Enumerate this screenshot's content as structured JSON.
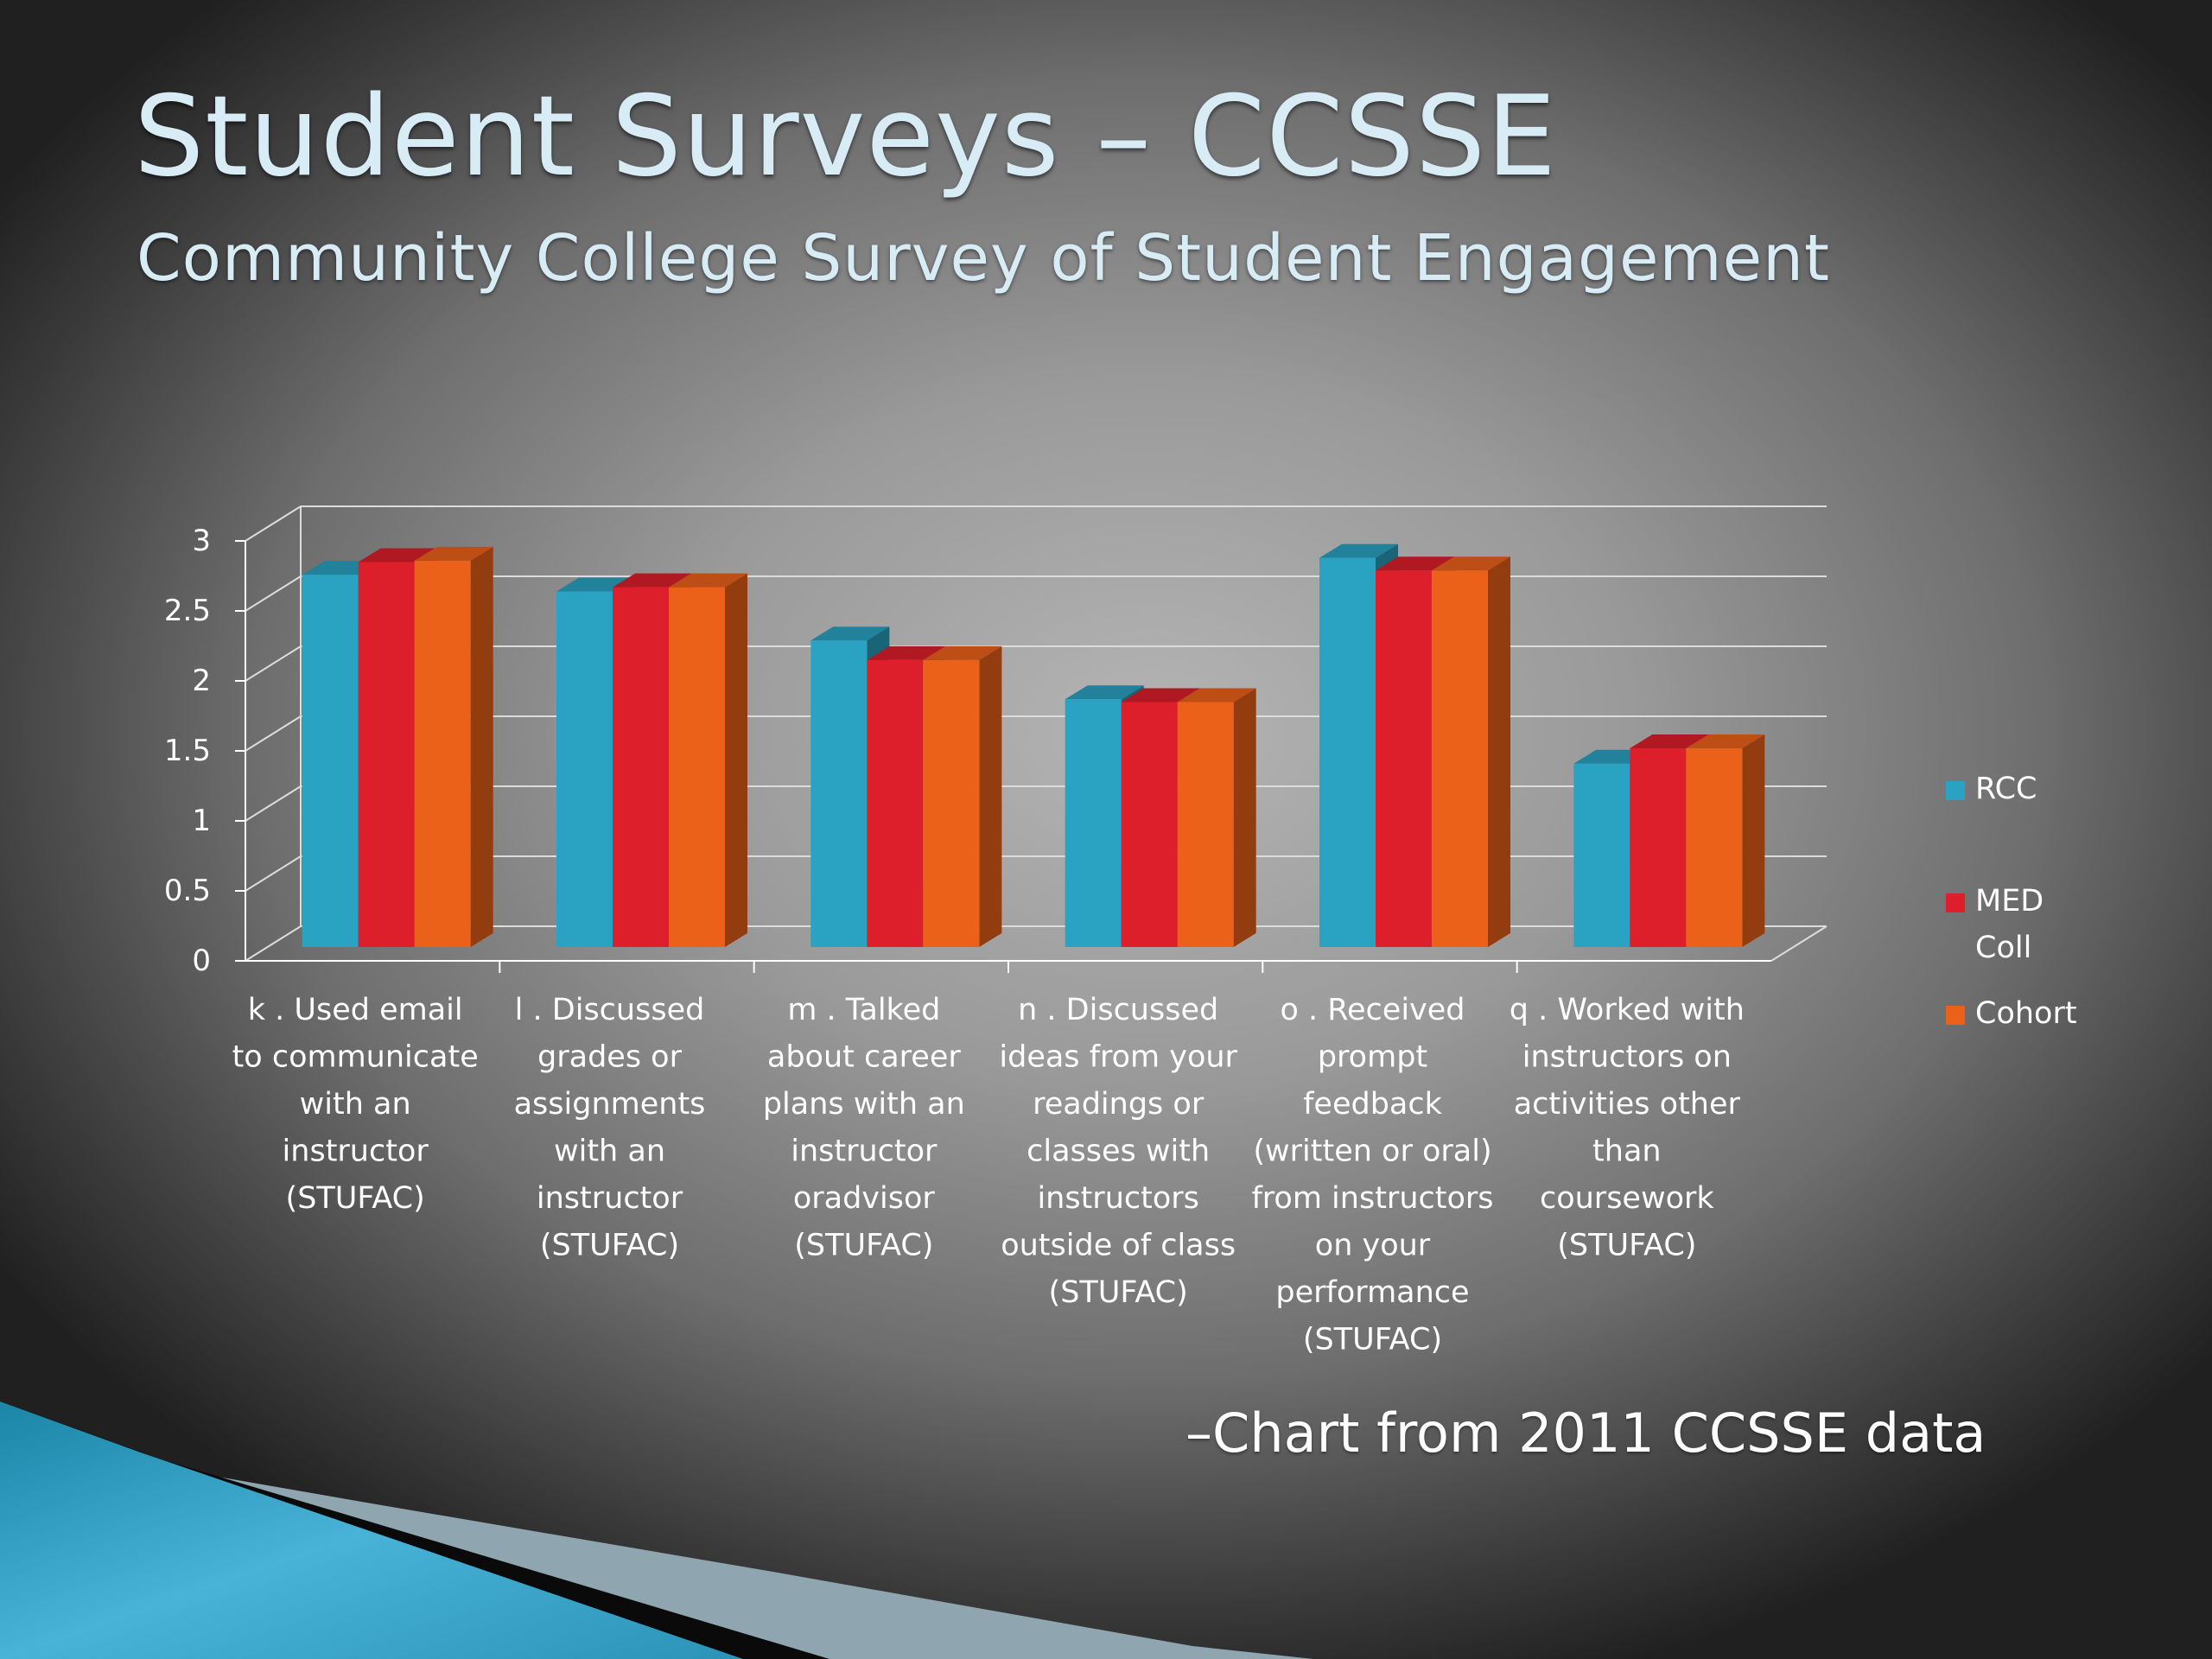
{
  "slide": {
    "title": "Student Surveys – CCSSE",
    "subtitle": "Community College Survey of Student Engagement",
    "footnote": "–Chart from 2011 CCSSE data"
  },
  "chart_data": {
    "type": "bar",
    "title": "",
    "xlabel": "",
    "ylabel": "",
    "ylim": [
      0,
      3
    ],
    "yticks": [
      "0",
      "0.5",
      "1",
      "1.5",
      "2",
      "2.5",
      "3"
    ],
    "grid": true,
    "legend_position": "right",
    "categories": [
      [
        "k . Used email",
        "to communicate",
        "with an",
        "instructor",
        "(STUFAC)"
      ],
      [
        "l . Discussed",
        "grades or",
        "assignments",
        "with an",
        "instructor",
        "(STUFAC)"
      ],
      [
        "m . Talked",
        "about career",
        "plans with an",
        "instructor",
        "oradvisor",
        "(STUFAC)"
      ],
      [
        "n . Discussed",
        "ideas from your",
        "readings or",
        "classes with",
        "instructors",
        "outside of class",
        "(STUFAC)"
      ],
      [
        "o . Received",
        "prompt",
        "feedback",
        "(written or oral)",
        "from instructors",
        "on your",
        "performance",
        "(STUFAC)"
      ],
      [
        "q . Worked with",
        "instructors on",
        "activities other",
        "than",
        "coursework",
        "(STUFAC)"
      ]
    ],
    "series": [
      {
        "name": "RCC",
        "legend_lines": [
          "RCC"
        ],
        "color": "#2aa2c2",
        "values": [
          2.66,
          2.54,
          2.19,
          1.77,
          2.78,
          1.31
        ]
      },
      {
        "name": "MED Coll",
        "legend_lines": [
          "MED",
          "Coll"
        ],
        "color": "#dc1f2b",
        "values": [
          2.75,
          2.57,
          2.05,
          1.75,
          2.69,
          1.42
        ]
      },
      {
        "name": "Cohort",
        "legend_lines": [
          "Cohort"
        ],
        "color": "#ec611a",
        "values": [
          2.76,
          2.57,
          2.05,
          1.75,
          2.69,
          1.42
        ]
      }
    ]
  }
}
